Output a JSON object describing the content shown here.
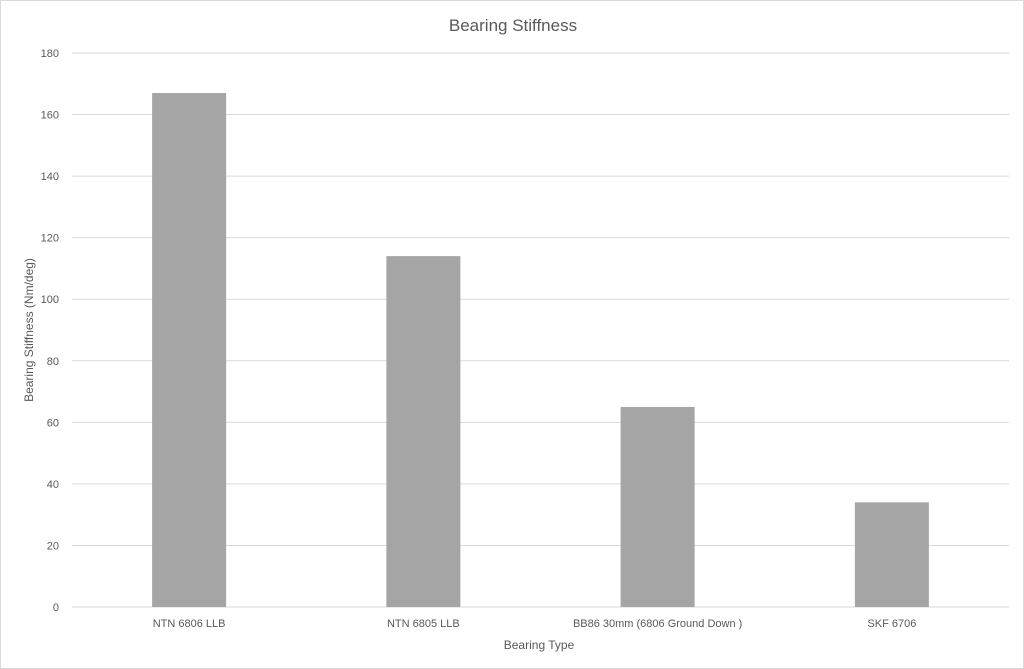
{
  "chart_data": {
    "type": "bar",
    "title": "Bearing Stiffness",
    "xlabel": "Bearing Type",
    "ylabel": "Bearing Stiffness (Nm/deg)",
    "categories": [
      "NTN 6806 LLB",
      "NTN 6805 LLB",
      "BB86 30mm (6806 Ground Down )",
      "SKF 6706"
    ],
    "values": [
      167,
      114,
      65,
      34
    ],
    "ylim": [
      0,
      180
    ],
    "yticks": [
      0,
      20,
      40,
      60,
      80,
      100,
      120,
      140,
      160,
      180
    ],
    "grid": true,
    "legend": "none",
    "colors": {
      "bar": "#a5a5a5",
      "grid": "#d9d9d9",
      "text": "#595959"
    }
  }
}
